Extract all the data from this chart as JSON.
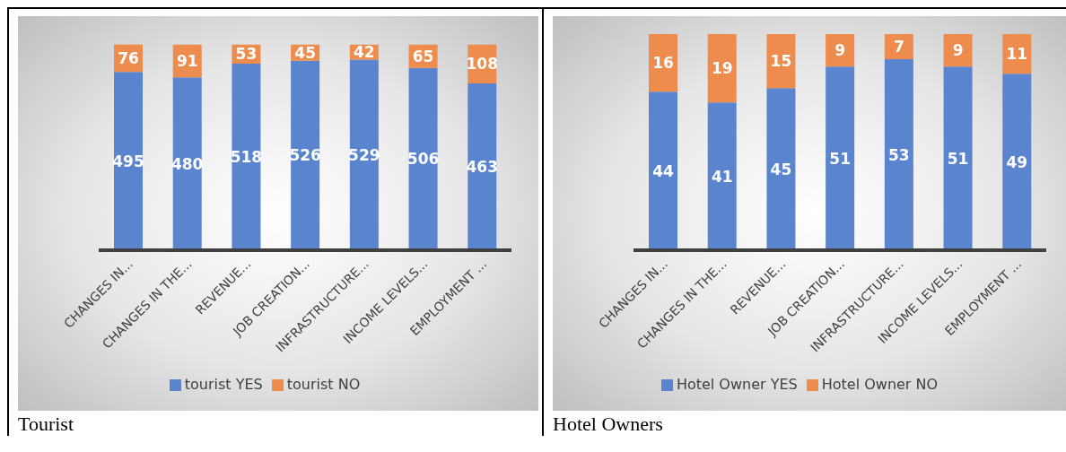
{
  "chart_data": [
    {
      "type": "bar",
      "title": "Tourist",
      "stacked": true,
      "categories": [
        "CHANGES IN...",
        "CHANGES IN THE...",
        "REVENUE...",
        "JOB CREATION...",
        "INFRASTRUCTURE...",
        "INCOME LEVELS...",
        "EMPLOYMENT ..."
      ],
      "series": [
        {
          "name": "tourist YES",
          "color": "#5b84cf",
          "values": [
            495,
            480,
            518,
            526,
            529,
            506,
            463
          ]
        },
        {
          "name": "tourist NO",
          "color": "#ed8c4c",
          "values": [
            76,
            91,
            53,
            45,
            42,
            65,
            108
          ]
        }
      ],
      "tick_labels": "x",
      "legend": "bottom",
      "data_labels": true
    },
    {
      "type": "bar",
      "title": "Hotel Owners",
      "stacked": true,
      "categories": [
        "CHANGES IN...",
        "CHANGES IN THE...",
        "REVENUE...",
        "JOB CREATION...",
        "INFRASTRUCTURE...",
        "INCOME LEVELS...",
        "EMPLOYMENT ..."
      ],
      "series": [
        {
          "name": "Hotel Owner YES",
          "color": "#5b84cf",
          "values": [
            44,
            41,
            45,
            51,
            53,
            51,
            49
          ]
        },
        {
          "name": "Hotel Owner NO",
          "color": "#ed8c4c",
          "values": [
            16,
            19,
            15,
            9,
            7,
            9,
            11
          ]
        }
      ],
      "tick_labels": "x",
      "legend": "bottom",
      "data_labels": true
    }
  ]
}
